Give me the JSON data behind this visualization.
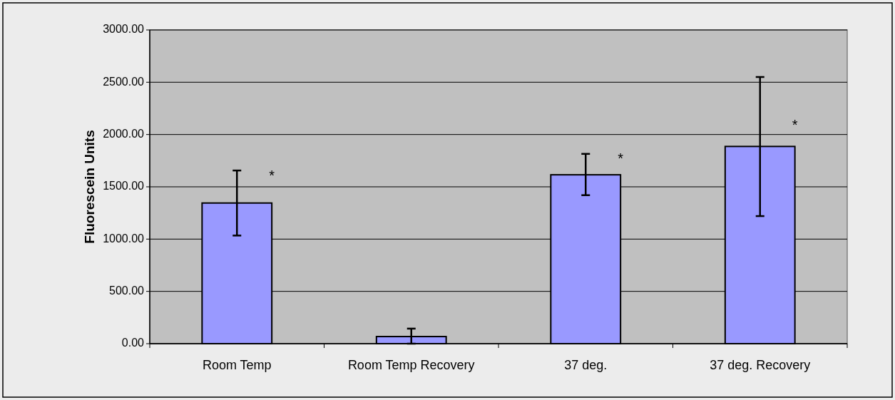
{
  "chart_data": {
    "type": "bar",
    "ylabel": "Fluorescein Units",
    "categories": [
      "Room Temp",
      "Room Temp Recovery",
      "37 deg.",
      "37 deg. Recovery"
    ],
    "values": [
      1345,
      68,
      1615,
      1886
    ],
    "errors": [
      [
        1034,
        1656
      ],
      [
        0,
        144
      ],
      [
        1420,
        1815
      ],
      [
        1220,
        2550
      ]
    ],
    "color": "#9999ff",
    "ylim": [
      0,
      3000
    ],
    "yticks": [
      {
        "value": 0,
        "label": "0.00"
      },
      {
        "value": 500,
        "label": "500.00"
      },
      {
        "value": 1000,
        "label": "1000.00"
      },
      {
        "value": 1500,
        "label": "1500.00"
      },
      {
        "value": 2000,
        "label": "2000.00"
      },
      {
        "value": 2500,
        "label": "2500.00"
      },
      {
        "value": 3000,
        "label": "3000.00"
      }
    ],
    "grid": "y",
    "annotations": [
      {
        "text": "*",
        "x": "Room Temp",
        "y": 1600
      },
      {
        "text": "*",
        "x": "37 deg.",
        "y": 1760
      },
      {
        "text": "*",
        "x": "37 deg. Recovery",
        "y": 2080
      }
    ]
  }
}
